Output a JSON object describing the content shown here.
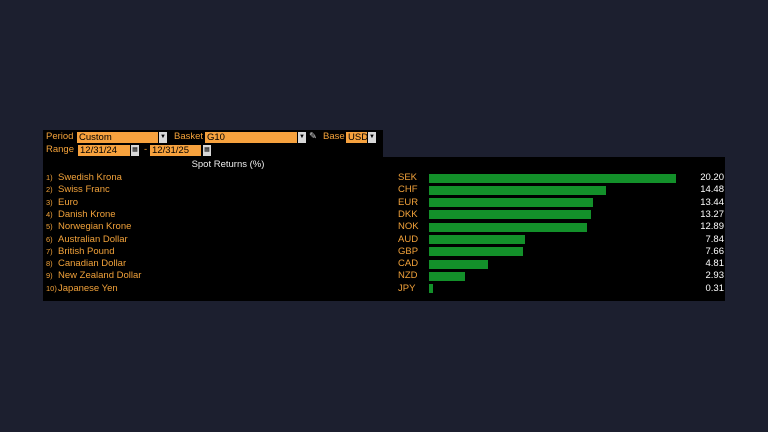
{
  "controls": {
    "period_label": "Period",
    "period_value": "Custom",
    "basket_label": "Basket",
    "basket_value": "G10",
    "base_label": "Base",
    "base_value": "USD",
    "range_label": "Range",
    "range_start": "12/31/24",
    "range_separator": "-",
    "range_end": "12/31/25"
  },
  "table": {
    "title": "Spot Returns (%)",
    "rows": [
      {
        "num": "1)",
        "name": "Swedish Krona",
        "code": "SEK",
        "value": 20.2,
        "value_label": "20.20"
      },
      {
        "num": "2)",
        "name": "Swiss Franc",
        "code": "CHF",
        "value": 14.48
      },
      {
        "num": "3)",
        "name": "Euro",
        "code": "EUR",
        "value": 13.44
      },
      {
        "num": "4)",
        "name": "Danish Krone",
        "code": "DKK",
        "value": 13.27
      },
      {
        "num": "5)",
        "name": "Norwegian Krone",
        "code": "NOK",
        "value": 12.89
      },
      {
        "num": "6)",
        "name": "Australian Dollar",
        "code": "AUD",
        "value": 7.84
      },
      {
        "num": "7)",
        "name": "British Pound",
        "code": "GBP",
        "value": 7.66
      },
      {
        "num": "8)",
        "name": "Canadian Dollar",
        "code": "CAD",
        "value": 4.81
      },
      {
        "num": "9)",
        "name": "New Zealand Dollar",
        "code": "NZD",
        "value": 2.93
      },
      {
        "num": "10)",
        "name": "Japanese Yen",
        "code": "JPY",
        "value": 0.31
      }
    ]
  }
}
